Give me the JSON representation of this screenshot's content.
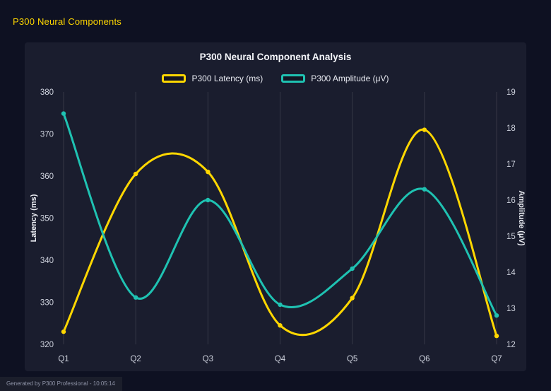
{
  "page": {
    "title": "P300 Neural Components",
    "footer": "Generated by P300 Professional - 10:05:14"
  },
  "chart_data": {
    "type": "line",
    "title": "P300 Neural Component Analysis",
    "categories": [
      "Q1",
      "Q2",
      "Q3",
      "Q4",
      "Q5",
      "Q6",
      "Q7"
    ],
    "series": [
      {
        "name": "P300 Latency (ms)",
        "axis": "left",
        "color": "#ffd700",
        "values": [
          323,
          360.5,
          361,
          324.5,
          331,
          371,
          322
        ]
      },
      {
        "name": "P300 Amplitude (μV)",
        "axis": "right",
        "color": "#1fc2b2",
        "values": [
          18.4,
          13.3,
          16.0,
          13.1,
          14.1,
          16.3,
          12.8
        ]
      }
    ],
    "left_axis": {
      "label": "Latency (ms)",
      "min": 320,
      "max": 380,
      "ticks": [
        320,
        330,
        340,
        350,
        360,
        370,
        380
      ]
    },
    "right_axis": {
      "label": "Amplitude (μV)",
      "min": 12,
      "max": 19,
      "ticks": [
        12,
        13,
        14,
        15,
        16,
        17,
        18,
        19
      ]
    },
    "grid": "vertical",
    "legend_position": "top",
    "colors": {
      "grid": "rgba(255,255,255,0.12)",
      "tick_text": "#cfd3de",
      "axis_title": "#eceef4"
    }
  }
}
